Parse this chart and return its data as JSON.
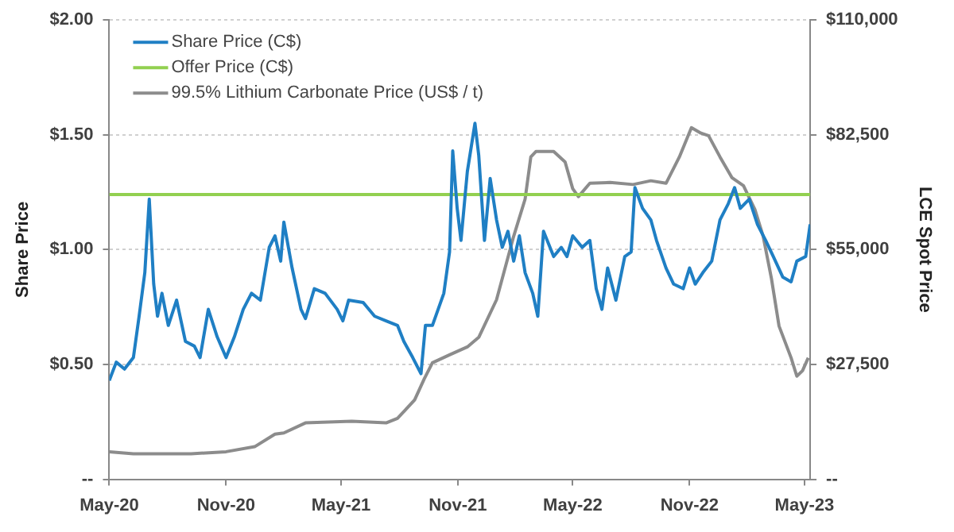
{
  "chart_data": {
    "type": "line",
    "ylabel": "Share Price",
    "y2label": "LCE Spot Price",
    "xlim": [
      "2020-05-01",
      "2023-05-10"
    ],
    "xticks": [
      {
        "value": "2020-05-01",
        "label": "May-20"
      },
      {
        "value": "2020-11-01",
        "label": "Nov-20"
      },
      {
        "value": "2021-05-01",
        "label": "May-21"
      },
      {
        "value": "2021-11-01",
        "label": "Nov-21"
      },
      {
        "value": "2022-05-01",
        "label": "May-22"
      },
      {
        "value": "2022-11-01",
        "label": "Nov-22"
      },
      {
        "value": "2023-05-01",
        "label": "May-23"
      }
    ],
    "ylim": [
      0,
      2
    ],
    "yticks": [
      {
        "value": 0,
        "label": "--"
      },
      {
        "value": 0.5,
        "label": "$0.50"
      },
      {
        "value": 1,
        "label": "$1.00"
      },
      {
        "value": 1.5,
        "label": "$1.50"
      },
      {
        "value": 2,
        "label": "$2.00"
      }
    ],
    "y2lim": [
      0,
      110000
    ],
    "y2ticks": [
      {
        "value": 0,
        "label": "--"
      },
      {
        "value": 27500,
        "label": "$27,500"
      },
      {
        "value": 55000,
        "label": "$55,000"
      },
      {
        "value": 82500,
        "label": "$82,500"
      },
      {
        "value": 110000,
        "label": "$110,000"
      }
    ],
    "grid": "y",
    "legend": "top left",
    "marker": "none",
    "series": [
      {
        "name": "Share Price (C$)",
        "color": "#1f7fc4",
        "x": [
          "2020-05-01",
          "2020-05-12",
          "2020-05-25",
          "2020-06-08",
          "2020-06-17",
          "2020-06-26",
          "2020-07-03",
          "2020-07-10",
          "2020-07-16",
          "2020-07-23",
          "2020-08-02",
          "2020-08-15",
          "2020-08-29",
          "2020-09-12",
          "2020-09-21",
          "2020-10-04",
          "2020-10-18",
          "2020-11-01",
          "2020-11-14",
          "2020-11-28",
          "2020-12-11",
          "2020-12-25",
          "2021-01-08",
          "2021-01-17",
          "2021-01-26",
          "2021-01-31",
          "2021-02-13",
          "2021-02-27",
          "2021-03-06",
          "2021-03-20",
          "2021-04-06",
          "2021-04-25",
          "2021-05-04",
          "2021-05-13",
          "2021-06-05",
          "2021-06-23",
          "2021-07-11",
          "2021-07-29",
          "2021-08-08",
          "2021-08-22",
          "2021-09-04",
          "2021-09-11",
          "2021-09-22",
          "2021-10-10",
          "2021-10-19",
          "2021-10-24",
          "2021-10-31",
          "2021-11-06",
          "2021-11-16",
          "2021-11-28",
          "2021-12-04",
          "2021-12-13",
          "2021-12-22",
          "2022-01-01",
          "2022-01-10",
          "2022-01-19",
          "2022-01-28",
          "2022-02-06",
          "2022-02-15",
          "2022-02-27",
          "2022-03-07",
          "2022-03-16",
          "2022-04-01",
          "2022-04-13",
          "2022-04-22",
          "2022-05-01",
          "2022-05-16",
          "2022-05-28",
          "2022-06-07",
          "2022-06-16",
          "2022-06-25",
          "2022-07-08",
          "2022-07-22",
          "2022-08-01",
          "2022-08-07",
          "2022-08-19",
          "2022-09-01",
          "2022-09-10",
          "2022-09-25",
          "2022-10-07",
          "2022-10-22",
          "2022-11-01",
          "2022-11-10",
          "2022-11-22",
          "2022-12-06",
          "2022-12-19",
          "2023-01-01",
          "2023-01-11",
          "2023-01-20",
          "2023-02-03",
          "2023-02-16",
          "2023-03-01",
          "2023-03-13",
          "2023-03-28",
          "2023-04-10",
          "2023-04-19",
          "2023-05-03",
          "2023-05-10"
        ],
        "values": [
          0.43,
          0.51,
          0.48,
          0.53,
          0.71,
          0.9,
          1.22,
          0.85,
          0.71,
          0.81,
          0.67,
          0.78,
          0.6,
          0.58,
          0.53,
          0.74,
          0.62,
          0.53,
          0.62,
          0.74,
          0.81,
          0.78,
          1.01,
          1.06,
          0.95,
          1.12,
          0.92,
          0.74,
          0.7,
          0.83,
          0.81,
          0.74,
          0.69,
          0.78,
          0.77,
          0.71,
          0.69,
          0.67,
          0.6,
          0.53,
          0.46,
          0.67,
          0.67,
          0.81,
          0.99,
          1.43,
          1.18,
          1.04,
          1.34,
          1.55,
          1.41,
          1.04,
          1.31,
          1.13,
          1.01,
          1.08,
          0.95,
          1.06,
          0.9,
          0.81,
          0.71,
          1.08,
          0.97,
          1.01,
          0.97,
          1.06,
          1.01,
          1.04,
          0.83,
          0.74,
          0.92,
          0.78,
          0.97,
          0.99,
          1.27,
          1.18,
          1.13,
          1.04,
          0.92,
          0.85,
          0.83,
          0.92,
          0.85,
          0.9,
          0.95,
          1.13,
          1.2,
          1.27,
          1.18,
          1.22,
          1.11,
          1.04,
          0.97,
          0.88,
          0.86,
          0.95,
          0.97,
          1.11
        ]
      },
      {
        "name": "Offer Price (C$)",
        "color": "#92d050",
        "x": [
          "2020-05-01",
          "2023-05-10"
        ],
        "values": [
          1.24,
          1.24
        ]
      },
      {
        "name": "99.5% Lithium Carbonate Price (US$ / t)",
        "color": "#8c8c8c",
        "axis": "y2",
        "x": [
          "2020-05-01",
          "2020-06-08",
          "2020-09-07",
          "2020-11-01",
          "2020-12-16",
          "2021-01-17",
          "2021-01-31",
          "2021-03-06",
          "2021-05-18",
          "2021-07-11",
          "2021-07-29",
          "2021-08-25",
          "2021-09-09",
          "2021-09-22",
          "2021-10-19",
          "2021-11-16",
          "2021-12-04",
          "2022-01-01",
          "2022-01-28",
          "2022-02-15",
          "2022-02-24",
          "2022-03-04",
          "2022-04-01",
          "2022-04-19",
          "2022-05-01",
          "2022-05-10",
          "2022-05-28",
          "2022-06-29",
          "2022-08-04",
          "2022-09-01",
          "2022-09-25",
          "2022-10-16",
          "2022-11-04",
          "2022-11-19",
          "2022-12-01",
          "2022-12-19",
          "2023-01-07",
          "2023-01-25",
          "2023-02-12",
          "2023-02-25",
          "2023-03-10",
          "2023-03-22",
          "2023-04-10",
          "2023-04-19",
          "2023-04-28",
          "2023-05-07"
        ],
        "values": [
          6600,
          6100,
          6100,
          6600,
          7800,
          10800,
          11100,
          13500,
          13900,
          13500,
          14600,
          19000,
          24000,
          27900,
          29800,
          31700,
          34000,
          43000,
          58200,
          67100,
          77200,
          78500,
          78500,
          76000,
          69600,
          67700,
          70900,
          71100,
          70600,
          71500,
          70900,
          77200,
          84200,
          82900,
          82300,
          77200,
          72200,
          70300,
          64600,
          58200,
          48100,
          36700,
          29100,
          24700,
          26000,
          29100
        ]
      }
    ]
  }
}
